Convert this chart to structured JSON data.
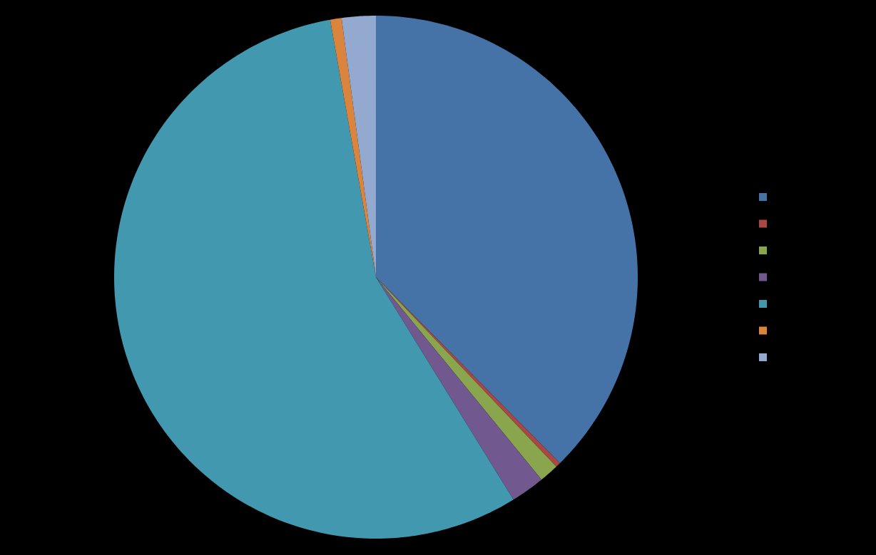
{
  "chart_data": {
    "type": "pie",
    "categories": [
      null,
      null,
      null,
      null,
      null,
      null,
      null
    ],
    "values": [
      37.6,
      0.3,
      1.2,
      2.1,
      56.0,
      0.7,
      2.1
    ],
    "colors": [
      "#4572a7",
      "#aa4643",
      "#89a54e",
      "#71588f",
      "#4198af",
      "#db843d",
      "#93a9cf"
    ]
  }
}
